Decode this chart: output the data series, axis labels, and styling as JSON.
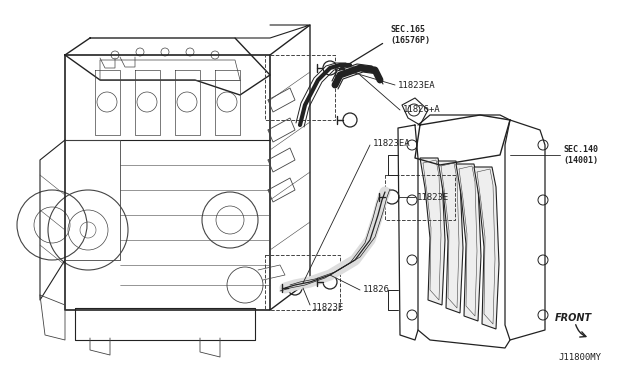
{
  "bg_color": "#ffffff",
  "line_color": "#444444",
  "dark_color": "#222222",
  "fig_width": 6.4,
  "fig_height": 3.72,
  "dpi": 100,
  "labels": {
    "sec165": "SEC.165\n(16576P)",
    "l11823EA_top": "11823EA",
    "l11826A": "11826+A",
    "l11823EA_mid": "11823EA",
    "l11823E_mid": "11823E",
    "l11826": "11826",
    "l11823E_bot": "11823E",
    "sec140": "SEC.140\n(14001)",
    "front": "FRONT",
    "diagram_id": "J11800MY"
  }
}
